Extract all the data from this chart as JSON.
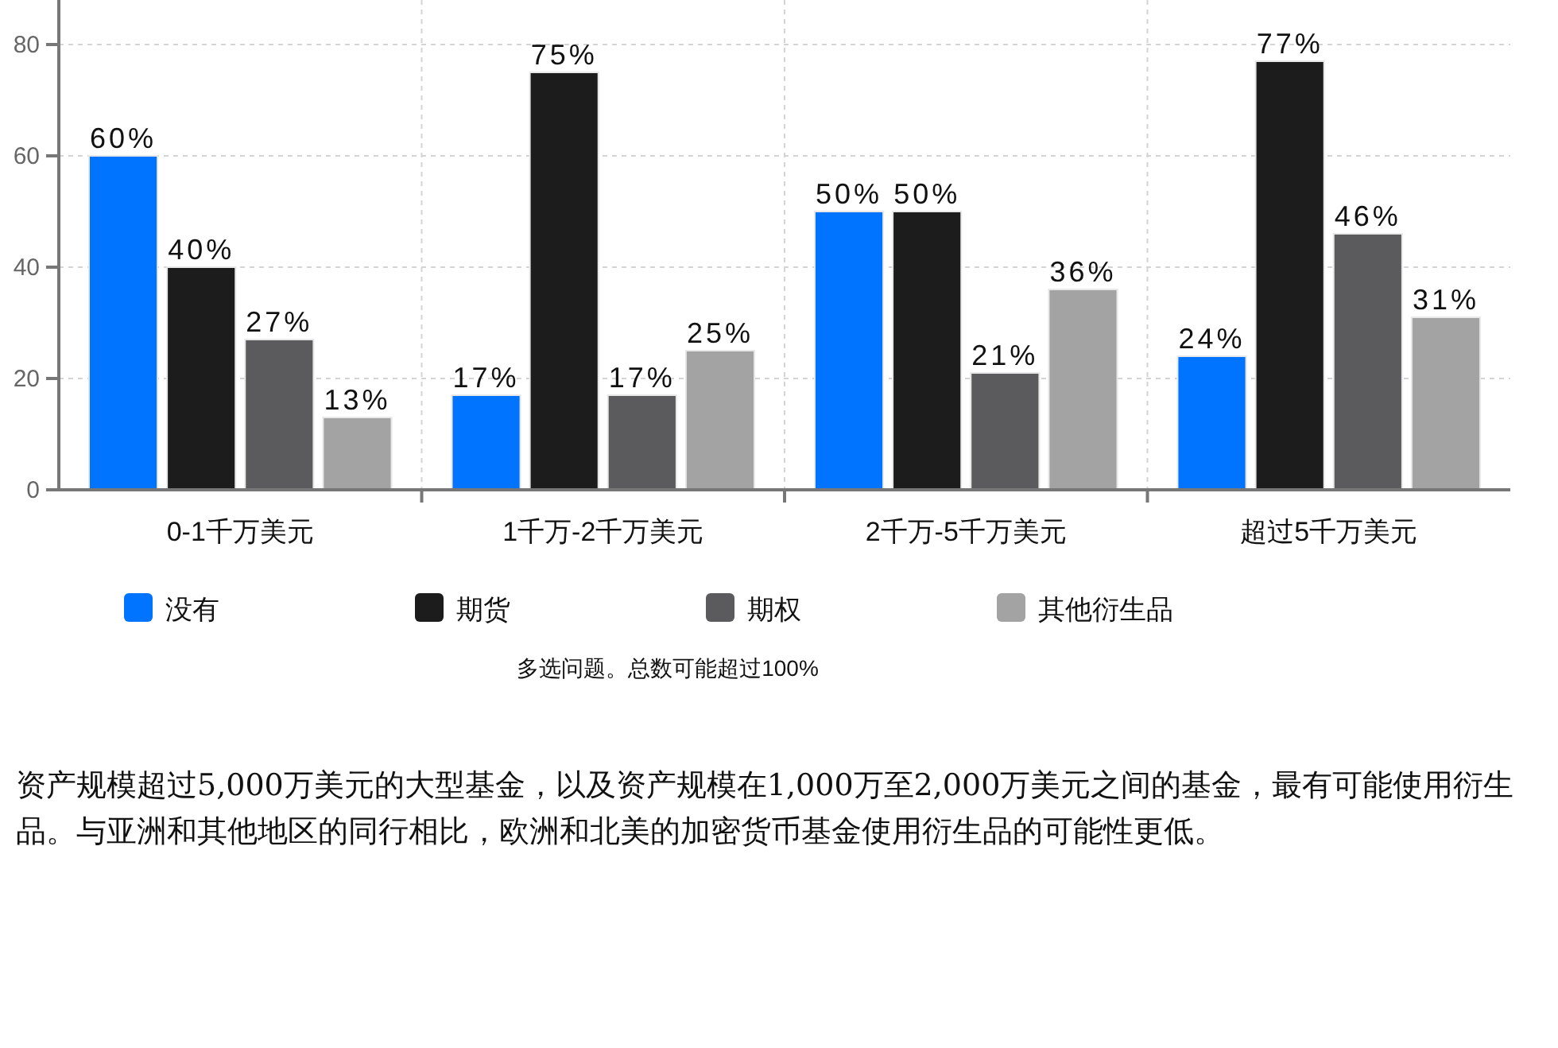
{
  "chart_data": {
    "type": "bar",
    "categories": [
      "0-1千万美元",
      "1千万-2千万美元",
      "2千万-5千万美元",
      "超过5千万美元"
    ],
    "series": [
      {
        "name": "没有",
        "color": "#0073ff",
        "values": [
          60,
          17,
          50,
          24
        ],
        "value_labels": [
          "60%",
          "17%",
          "50%",
          "24%"
        ]
      },
      {
        "name": "期货",
        "color": "#1c1c1c",
        "values": [
          40,
          75,
          50,
          77
        ],
        "value_labels": [
          "40%",
          "75%",
          "50%",
          "77%"
        ]
      },
      {
        "name": "期权",
        "color": "#5b5b5d",
        "values": [
          27,
          17,
          21,
          46
        ],
        "value_labels": [
          "27%",
          "17%",
          "21%",
          "46%"
        ]
      },
      {
        "name": "其他衍生品",
        "color": "#a3a3a3",
        "values": [
          13,
          25,
          36,
          31
        ],
        "value_labels": [
          "13%",
          "25%",
          "36%",
          "31%"
        ]
      }
    ],
    "ylim": [
      0,
      88
    ],
    "yticks": [
      0,
      20,
      40,
      60,
      80
    ],
    "grid": true,
    "legend": "bottom",
    "annotations": [
      "多选问题。总数可能超过100%",
      "资产规模超过5,000万美元的大型基金，以及资产规模在1,000万至2,000万美元之间的基金，最有可能使用衍生品。与亚洲和其他地区的同行相比，欧洲和北美的加密货币基金使用衍生品的可能性更低。"
    ]
  }
}
